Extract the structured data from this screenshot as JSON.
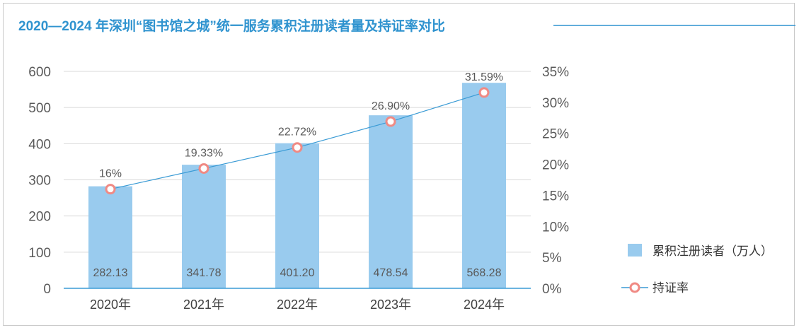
{
  "chart_data": {
    "title": "2020—2024 年深圳“图书馆之城”统一服务累积注册读者量及持证率对比",
    "type": "bar+line",
    "categories": [
      "2020年",
      "2021年",
      "2022年",
      "2023年",
      "2024年"
    ],
    "series": [
      {
        "name": "累积注册读者（万人）",
        "type": "bar",
        "axis": "left",
        "values": [
          282.13,
          341.78,
          401.2,
          478.54,
          568.28
        ],
        "labels": [
          "282.13",
          "341.78",
          "401.20",
          "478.54",
          "568.28"
        ],
        "color": "#99cbee"
      },
      {
        "name": "持证率",
        "type": "line",
        "axis": "right",
        "values": [
          16,
          19.33,
          22.72,
          26.9,
          31.59
        ],
        "labels": [
          "16%",
          "19.33%",
          "22.72%",
          "26.90%",
          "31.59%"
        ],
        "color": "#3a9bd5",
        "marker_color": "#f08a84"
      }
    ],
    "y_left": {
      "min": 0,
      "max": 600,
      "ticks": [
        "0",
        "100",
        "200",
        "300",
        "400",
        "500",
        "600"
      ]
    },
    "y_right": {
      "min": 0,
      "max": 35,
      "ticks": [
        "0%",
        "5%",
        "10%",
        "15%",
        "20%",
        "25%",
        "30%",
        "35%"
      ]
    },
    "grid": true,
    "legend_position": "right"
  },
  "colors": {
    "title": "#2f93cf",
    "grid": "#d9d9d9",
    "axis": "#3a9bd5"
  }
}
